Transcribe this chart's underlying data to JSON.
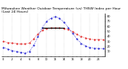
{
  "title": "Milwaukee Weather Outdoor Temperature (vs) THSW Index per Hour (Last 24 Hours)",
  "temp_color": "#dd0000",
  "thsw_color": "#0000cc",
  "background_color": "#ffffff",
  "grid_color": "#999999",
  "hours": [
    0,
    1,
    2,
    3,
    4,
    5,
    6,
    7,
    8,
    9,
    10,
    11,
    12,
    13,
    14,
    15,
    16,
    17,
    18,
    19,
    20,
    21,
    22,
    23
  ],
  "temp_values": [
    30,
    28,
    27,
    26,
    25,
    25,
    27,
    35,
    45,
    52,
    56,
    57,
    57,
    57,
    56,
    54,
    50,
    44,
    40,
    37,
    35,
    34,
    34,
    34
  ],
  "thsw_values": [
    18,
    15,
    12,
    10,
    8,
    7,
    10,
    22,
    40,
    58,
    70,
    76,
    80,
    76,
    68,
    58,
    46,
    35,
    26,
    21,
    18,
    17,
    16,
    16
  ],
  "ylim_min": 0,
  "ylim_max": 85,
  "ytick_values": [
    10,
    20,
    30,
    40,
    50,
    60,
    70,
    80
  ],
  "title_fontsize": 3.2,
  "tick_fontsize": 2.5,
  "line_width": 0.5,
  "marker_size": 1.0
}
